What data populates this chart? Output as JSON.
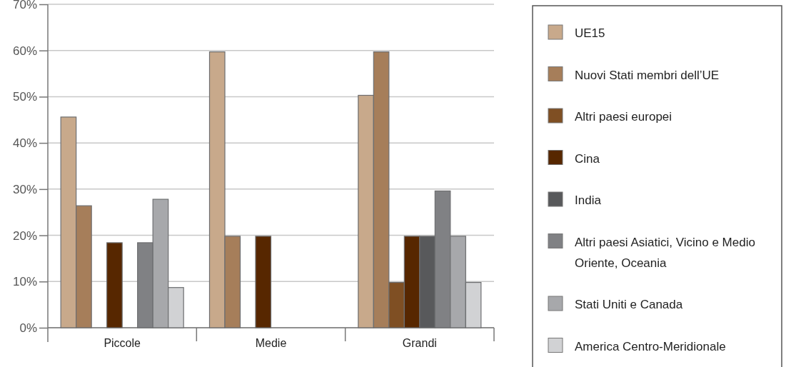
{
  "chart_data": {
    "type": "bar",
    "categories": [
      "Piccole",
      "Medie",
      "Grandi"
    ],
    "series": [
      {
        "name": "UE15",
        "color": "#c8a98b",
        "values": [
          45.6,
          59.7,
          50.3
        ]
      },
      {
        "name": "Nuovi Stati membri dell’UE",
        "color": "#a67e5a",
        "values": [
          26.4,
          19.8,
          59.7
        ]
      },
      {
        "name": "Altri paesi europei",
        "color": "#7f4f23",
        "values": [
          null,
          null,
          9.8
        ]
      },
      {
        "name": "Cina",
        "color": "#572700",
        "values": [
          18.4,
          19.8,
          19.8
        ]
      },
      {
        "name": "India",
        "color": "#58595b",
        "values": [
          null,
          null,
          19.8
        ]
      },
      {
        "name": "Altri paesi Asiatici, Vicino e Medio Oriente, Oceania",
        "color": "#808184",
        "values": [
          18.4,
          null,
          29.6
        ]
      },
      {
        "name": "Stati Uniti e Canada",
        "color": "#a7a8ab",
        "values": [
          27.8,
          null,
          19.8
        ]
      },
      {
        "name": "America Centro-Meridionale",
        "color": "#d1d2d4",
        "values": [
          8.7,
          null,
          9.8
        ]
      }
    ],
    "ylim": [
      0,
      70
    ],
    "yticks": [
      {
        "value": 0,
        "label": "0%"
      },
      {
        "value": 10,
        "label": "10%"
      },
      {
        "value": 20,
        "label": "20%"
      },
      {
        "value": 30,
        "label": "30%"
      },
      {
        "value": 40,
        "label": "40%"
      },
      {
        "value": 50,
        "label": "50%"
      },
      {
        "value": 60,
        "label": "60%"
      },
      {
        "value": 70,
        "label": "70%"
      }
    ],
    "grid": "y",
    "legend": "right"
  }
}
